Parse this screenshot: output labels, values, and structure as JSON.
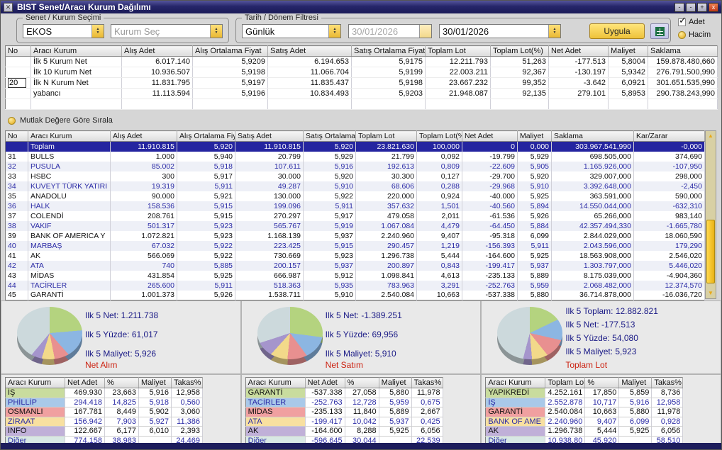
{
  "window": {
    "title": "BIST Senet/Aracı Kurum Dağılımı",
    "buttons": {
      "min1": "-",
      "min2": "-",
      "max": "+",
      "close": "x"
    }
  },
  "toolbar": {
    "group1_label": "Senet / Kurum Seçimi",
    "symbol_value": "EKOS",
    "broker_placeholder": "Kurum Seç",
    "group2_label": "Tarih / Dönem Filtresi",
    "period_value": "Günlük",
    "date_from": "30/01/2026",
    "date_to": "30/01/2026",
    "apply_label": "Uygula",
    "adet_label": "Adet",
    "hacim_label": "Hacim"
  },
  "summary_table": {
    "headers": [
      "No",
      "Aracı Kurum",
      "Alış Adet",
      "Alış Ortalama Fiyat",
      "Satış Adet",
      "Satış Ortalama Fiyat",
      "Toplam Lot",
      "Toplam Lot(%)",
      "Net Adet",
      "Maliyet",
      "Saklama"
    ],
    "n_value": "20",
    "rows": [
      {
        "name": "İlk 5 Kurum Net",
        "has_n_input": false,
        "cells": [
          "6.017.140",
          "5,9209",
          "6.194.653",
          "5,9175",
          "12.211.793",
          "51,263",
          "-177.513",
          "5,8004",
          "159.878.480,660"
        ]
      },
      {
        "name": "İlk 10 Kurum Net",
        "has_n_input": false,
        "cells": [
          "10.936.507",
          "5,9198",
          "11.066.704",
          "5,9199",
          "22.003.211",
          "92,367",
          "-130.197",
          "5,9342",
          "276.791.500,990"
        ]
      },
      {
        "name": "İlk N Kurum Net",
        "has_n_input": true,
        "cells": [
          "11.831.795",
          "5,9197",
          "11.835.437",
          "5,9198",
          "23.667.232",
          "99,352",
          "-3.642",
          "6,0921",
          "301.651.535,990"
        ]
      },
      {
        "name": "yabancı",
        "has_n_input": false,
        "cells": [
          "11.113.594",
          "5,9196",
          "10.834.493",
          "5,9203",
          "21.948.087",
          "92,135",
          "279.101",
          "5,8953",
          "290.738.243,990"
        ]
      },
      {
        "name": "",
        "has_n_input": false,
        "cells": [
          "",
          "",
          "",
          "",
          "",
          "",
          "",
          "",
          ""
        ]
      }
    ]
  },
  "sort_radio_label": "Mutlak Değere Göre Sırala",
  "detail_table": {
    "headers": [
      "No",
      "Aracı Kurum",
      "Alış Adet",
      "Alış Ortalama Fiy",
      "Satış Adet",
      "Satış Ortalama Fi",
      "Toplam Lot",
      "Toplam Lot(%",
      "Net Adet",
      "Maliyet",
      "Saklama",
      "Kar/Zarar"
    ],
    "total_row": {
      "no": "",
      "name": "Toplam",
      "cells": [
        "11.910.815",
        "5,920",
        "11.910.815",
        "5,920",
        "23.821.630",
        "100,000",
        "0",
        "0,000",
        "303.967.541,990",
        "-0,000"
      ]
    },
    "rows": [
      {
        "no": "31",
        "name": "BULLS",
        "cells": [
          "1.000",
          "5,940",
          "20.799",
          "5,929",
          "21.799",
          "0,092",
          "-19.799",
          "5,929",
          "698.505,000",
          "374,690"
        ]
      },
      {
        "no": "32",
        "name": "PUSULA",
        "cells": [
          "85.002",
          "5,918",
          "107.611",
          "5,916",
          "192.613",
          "0,809",
          "-22.609",
          "5,905",
          "1.165.926,000",
          "-107,950"
        ]
      },
      {
        "no": "33",
        "name": "HSBC",
        "cells": [
          "300",
          "5,917",
          "30.000",
          "5,920",
          "30.300",
          "0,127",
          "-29.700",
          "5,920",
          "329.007,000",
          "298,000"
        ]
      },
      {
        "no": "34",
        "name": "KUVEYT TÜRK YATIRI",
        "cells": [
          "19.319",
          "5,911",
          "49.287",
          "5,910",
          "68.606",
          "0,288",
          "-29.968",
          "5,910",
          "3.392.648,000",
          "-2,450"
        ]
      },
      {
        "no": "35",
        "name": "ANADOLU",
        "cells": [
          "90.000",
          "5,921",
          "130.000",
          "5,922",
          "220.000",
          "0,924",
          "-40.000",
          "5,925",
          "363.591,000",
          "590,000"
        ]
      },
      {
        "no": "36",
        "name": "HALK",
        "cells": [
          "158.536",
          "5,915",
          "199.096",
          "5,911",
          "357.632",
          "1,501",
          "-40.560",
          "5,894",
          "14.550.044,000",
          "-632,310"
        ]
      },
      {
        "no": "37",
        "name": "COLENDİ",
        "cells": [
          "208.761",
          "5,915",
          "270.297",
          "5,917",
          "479.058",
          "2,011",
          "-61.536",
          "5,926",
          "65.266,000",
          "983,140"
        ]
      },
      {
        "no": "38",
        "name": "VAKIF",
        "cells": [
          "501.317",
          "5,923",
          "565.767",
          "5,919",
          "1.067.084",
          "4,479",
          "-64.450",
          "5,884",
          "42.357.494,330",
          "-1.665,780"
        ]
      },
      {
        "no": "39",
        "name": "BANK OF AMERICA Y",
        "cells": [
          "1.072.821",
          "5,923",
          "1.168.139",
          "5,937",
          "2.240.960",
          "9,407",
          "-95.318",
          "6,099",
          "2.844.029,000",
          "18.060,590"
        ]
      },
      {
        "no": "40",
        "name": "MARBAŞ",
        "cells": [
          "67.032",
          "5,922",
          "223.425",
          "5,915",
          "290.457",
          "1,219",
          "-156.393",
          "5,911",
          "2.043.596,000",
          "179,290"
        ]
      },
      {
        "no": "41",
        "name": "AK",
        "cells": [
          "566.069",
          "5,922",
          "730.669",
          "5,923",
          "1.296.738",
          "5,444",
          "-164.600",
          "5,925",
          "18.563.908,000",
          "2.546,020"
        ]
      },
      {
        "no": "42",
        "name": "ATA",
        "cells": [
          "740",
          "5,885",
          "200.157",
          "5,937",
          "200.897",
          "0,843",
          "-199.417",
          "5,937",
          "1.303.797,000",
          "5.446,020"
        ]
      },
      {
        "no": "43",
        "name": "MİDAS",
        "cells": [
          "431.854",
          "5,925",
          "666.987",
          "5,912",
          "1.098.841",
          "4,613",
          "-235.133",
          "5,889",
          "8.175.039,000",
          "-4.904,360"
        ]
      },
      {
        "no": "44",
        "name": "TACİRLER",
        "cells": [
          "265.600",
          "5,911",
          "518.363",
          "5,935",
          "783.963",
          "3,291",
          "-252.763",
          "5,959",
          "2.068.482,000",
          "12.374,570"
        ]
      },
      {
        "no": "45",
        "name": "GARANTİ",
        "cells": [
          "1.001.373",
          "5,926",
          "1.538.711",
          "5,910",
          "2.540.084",
          "10,663",
          "-537.338",
          "5,880",
          "36.714.878,000",
          "-16.036,720"
        ]
      }
    ]
  },
  "chart_data": [
    {
      "type": "pie",
      "title": "Net Alım",
      "categories": [
        "İŞ",
        "PHİLLİP",
        "OSMANLI",
        "ZİRAAT",
        "İNFO",
        "Diğer"
      ],
      "values": [
        23.663,
        14.825,
        8.449,
        7.903,
        6.177,
        38.983
      ]
    },
    {
      "type": "pie",
      "title": "Net Satım",
      "categories": [
        "GARANTİ",
        "TACİRLER",
        "MİDAS",
        "ATA",
        "AK",
        "Diğer"
      ],
      "values": [
        27.058,
        12.728,
        11.84,
        10.042,
        8.288,
        30.044
      ]
    },
    {
      "type": "pie",
      "title": "Toplam Lot",
      "categories": [
        "YAPIKREDİ",
        "İŞ",
        "GARANTİ",
        "BANK OF AME",
        "AK",
        "Diğer"
      ],
      "values": [
        17.85,
        10.717,
        10.663,
        9.407,
        5.444,
        45.92
      ]
    }
  ],
  "pies": [
    {
      "caption": "Net Alım",
      "stats": [
        "Ilk 5 Net: 1.211.738",
        "Ilk 5 Yüzde: 61,017",
        "Ilk 5 Maliyet: 5,926"
      ],
      "slices": [
        {
          "label": "İŞ",
          "value": 23.663,
          "color": "#b4d37f"
        },
        {
          "label": "PHİLLİP",
          "value": 14.825,
          "color": "#8cb6e2"
        },
        {
          "label": "OSMANLI",
          "value": 8.449,
          "color": "#e89090"
        },
        {
          "label": "ZİRAAT",
          "value": 7.903,
          "color": "#f2d98a"
        },
        {
          "label": "İNFO",
          "value": 6.177,
          "color": "#a595cc"
        },
        {
          "label": "Diğer",
          "value": 38.983,
          "color": "#ccd9dc"
        }
      ]
    },
    {
      "caption": "Net Satım",
      "stats": [
        "Ilk 5 Net: -1.389.251",
        "Ilk 5 Yüzde: 69,956",
        "Ilk 5 Maliyet: 5,910"
      ],
      "slices": [
        {
          "label": "GARANTİ",
          "value": 27.058,
          "color": "#b4d37f"
        },
        {
          "label": "TACİRLER",
          "value": 12.728,
          "color": "#8cb6e2"
        },
        {
          "label": "MİDAS",
          "value": 11.84,
          "color": "#e89090"
        },
        {
          "label": "ATA",
          "value": 10.042,
          "color": "#f2d98a"
        },
        {
          "label": "AK",
          "value": 8.288,
          "color": "#a595cc"
        },
        {
          "label": "Diğer",
          "value": 30.044,
          "color": "#ccd9dc"
        }
      ]
    },
    {
      "caption": "Toplam Lot",
      "stats": [
        "Ilk 5 Toplam: 12.882.821",
        "Ilk 5 Net: -177.513",
        "Ilk 5 Yüzde: 54,080",
        "Ilk 5 Maliyet: 5,923"
      ],
      "slices": [
        {
          "label": "YAPIKREDİ",
          "value": 17.85,
          "color": "#b4d37f"
        },
        {
          "label": "İŞ",
          "value": 10.717,
          "color": "#8cb6e2"
        },
        {
          "label": "GARANTİ",
          "value": 10.663,
          "color": "#e89090"
        },
        {
          "label": "BANK OF AME",
          "value": 9.407,
          "color": "#f2d98a"
        },
        {
          "label": "AK",
          "value": 5.444,
          "color": "#a595cc"
        },
        {
          "label": "Diğer",
          "value": 45.92,
          "color": "#ccd9dc"
        }
      ]
    }
  ],
  "bottom_tables": [
    {
      "headers": [
        "Aracı Kurum",
        "Net Adet",
        "%",
        "Maliyet",
        "Takas%"
      ],
      "rows": [
        {
          "name": "İŞ",
          "color": "#c9dc9e",
          "cells": [
            "469.930",
            "23,663",
            "5,916",
            "12,958"
          ]
        },
        {
          "name": "PHİLLİP",
          "color": "#a9c9e9",
          "cells": [
            "294.418",
            "14,825",
            "5,918",
            "0,560"
          ]
        },
        {
          "name": "OSMANLI",
          "color": "#f0a0a0",
          "cells": [
            "167.781",
            "8,449",
            "5,902",
            "3,060"
          ]
        },
        {
          "name": "ZİRAAT",
          "color": "#f8e0a0",
          "cells": [
            "156.942",
            "7,903",
            "5,927",
            "11,386"
          ]
        },
        {
          "name": "İNFO",
          "color": "#c0b0d8",
          "cells": [
            "122.667",
            "6,177",
            "6,010",
            "2,393"
          ]
        },
        {
          "name": "Diğer",
          "color": "#d8e8e4",
          "cells": [
            "774.158",
            "38,983",
            "",
            "24,469"
          ]
        }
      ]
    },
    {
      "headers": [
        "Aracı Kurum",
        "Net Adet",
        "%",
        "Maliyet",
        "Takas%"
      ],
      "rows": [
        {
          "name": "GARANTİ",
          "color": "#c9dc9e",
          "cells": [
            "-537.338",
            "27,058",
            "5,880",
            "11,978"
          ]
        },
        {
          "name": "TACİRLER",
          "color": "#a9c9e9",
          "cells": [
            "-252.763",
            "12,728",
            "5,959",
            "0,675"
          ]
        },
        {
          "name": "MİDAS",
          "color": "#f0a0a0",
          "cells": [
            "-235.133",
            "11,840",
            "5,889",
            "2,667"
          ]
        },
        {
          "name": "ATA",
          "color": "#f8e0a0",
          "cells": [
            "-199.417",
            "10,042",
            "5,937",
            "0,425"
          ]
        },
        {
          "name": "AK",
          "color": "#c0b0d8",
          "cells": [
            "-164.600",
            "8,288",
            "5,925",
            "6,056"
          ]
        },
        {
          "name": "Diğer",
          "color": "#d8e8e4",
          "cells": [
            "-596.645",
            "30,044",
            "",
            "22,539"
          ]
        }
      ]
    },
    {
      "headers": [
        "Aracı Kurum",
        "Toplam Lot",
        "%",
        "Maliyet",
        "Takas%"
      ],
      "rows": [
        {
          "name": "YAPIKREDİ",
          "color": "#c9dc9e",
          "cells": [
            "4.252.161",
            "17,850",
            "5,859",
            "8,736"
          ]
        },
        {
          "name": "İŞ",
          "color": "#a9c9e9",
          "cells": [
            "2.552.878",
            "10,717",
            "5,916",
            "12,958"
          ]
        },
        {
          "name": "GARANTİ",
          "color": "#f0a0a0",
          "cells": [
            "2.540.084",
            "10,663",
            "5,880",
            "11,978"
          ]
        },
        {
          "name": "BANK OF AME",
          "color": "#f8e0a0",
          "cells": [
            "2.240.960",
            "9,407",
            "6,099",
            "0,928"
          ]
        },
        {
          "name": "AK",
          "color": "#c0b0d8",
          "cells": [
            "1.296.738",
            "5,444",
            "5,925",
            "6,056"
          ]
        },
        {
          "name": "Diğer",
          "color": "#d8e8e4",
          "cells": [
            "10.938.80",
            "45,920",
            "",
            "58,510"
          ]
        }
      ]
    }
  ]
}
